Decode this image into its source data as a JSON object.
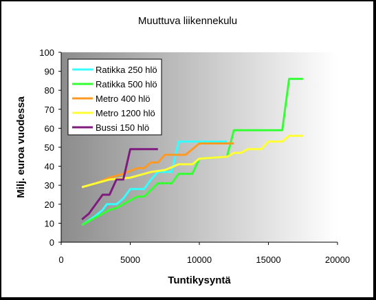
{
  "chart_data": {
    "type": "line",
    "title": "Muuttuva liikennekulu",
    "xlabel": "Tuntikysyntä",
    "ylabel": "Milj. euroa vuodessa",
    "xlim": [
      0,
      20000
    ],
    "ylim": [
      0,
      100
    ],
    "xticks": [
      0,
      5000,
      10000,
      15000,
      20000
    ],
    "yticks": [
      0,
      10,
      20,
      30,
      40,
      50,
      60,
      70,
      80,
      90,
      100
    ],
    "grid": false,
    "legend_position": "top-left",
    "series": [
      {
        "name": "Ratikka 250 hlö",
        "color": "#33ffff",
        "points": [
          [
            1500,
            9
          ],
          [
            2500,
            14
          ],
          [
            3000,
            17
          ],
          [
            3300,
            20
          ],
          [
            4000,
            20
          ],
          [
            4500,
            23
          ],
          [
            5000,
            28
          ],
          [
            6000,
            28
          ],
          [
            6500,
            33
          ],
          [
            7000,
            37
          ],
          [
            8000,
            37
          ],
          [
            8500,
            53
          ],
          [
            12000,
            53
          ]
        ]
      },
      {
        "name": "Ratikka 500 hlö",
        "color": "#33ff33",
        "points": [
          [
            1500,
            9
          ],
          [
            2000,
            11
          ],
          [
            3000,
            15
          ],
          [
            3500,
            17
          ],
          [
            4000,
            18
          ],
          [
            4500,
            20
          ],
          [
            5500,
            24
          ],
          [
            6000,
            24
          ],
          [
            7000,
            31
          ],
          [
            8000,
            31
          ],
          [
            8500,
            36
          ],
          [
            9500,
            36
          ],
          [
            10000,
            44
          ],
          [
            12000,
            45
          ],
          [
            12500,
            59
          ],
          [
            16000,
            59
          ],
          [
            16500,
            86
          ],
          [
            17500,
            86
          ]
        ]
      },
      {
        "name": "Metro 400 hlö",
        "color": "#ff9922",
        "points": [
          [
            1500,
            29
          ],
          [
            2500,
            31
          ],
          [
            3500,
            34
          ],
          [
            4500,
            36
          ],
          [
            5500,
            39
          ],
          [
            6000,
            39
          ],
          [
            6500,
            42
          ],
          [
            7000,
            42
          ],
          [
            7500,
            46
          ],
          [
            9000,
            46
          ],
          [
            10000,
            52
          ],
          [
            12500,
            52
          ]
        ]
      },
      {
        "name": "Metro 1200 hlö",
        "color": "#ffff33",
        "points": [
          [
            1500,
            29
          ],
          [
            3500,
            33
          ],
          [
            5000,
            34
          ],
          [
            6500,
            37
          ],
          [
            7500,
            38
          ],
          [
            8500,
            41
          ],
          [
            9500,
            41
          ],
          [
            10000,
            44
          ],
          [
            12000,
            45
          ],
          [
            12500,
            47
          ],
          [
            13000,
            47
          ],
          [
            13500,
            49
          ],
          [
            14500,
            49
          ],
          [
            15000,
            53
          ],
          [
            16000,
            53
          ],
          [
            16500,
            56
          ],
          [
            17500,
            56
          ]
        ]
      },
      {
        "name": "Bussi 150 hlö",
        "color": "#7f1a7f",
        "points": [
          [
            1500,
            12
          ],
          [
            2000,
            15
          ],
          [
            3000,
            25
          ],
          [
            3500,
            25
          ],
          [
            4000,
            33
          ],
          [
            4500,
            33
          ],
          [
            5000,
            49
          ],
          [
            7000,
            49
          ]
        ]
      }
    ]
  }
}
